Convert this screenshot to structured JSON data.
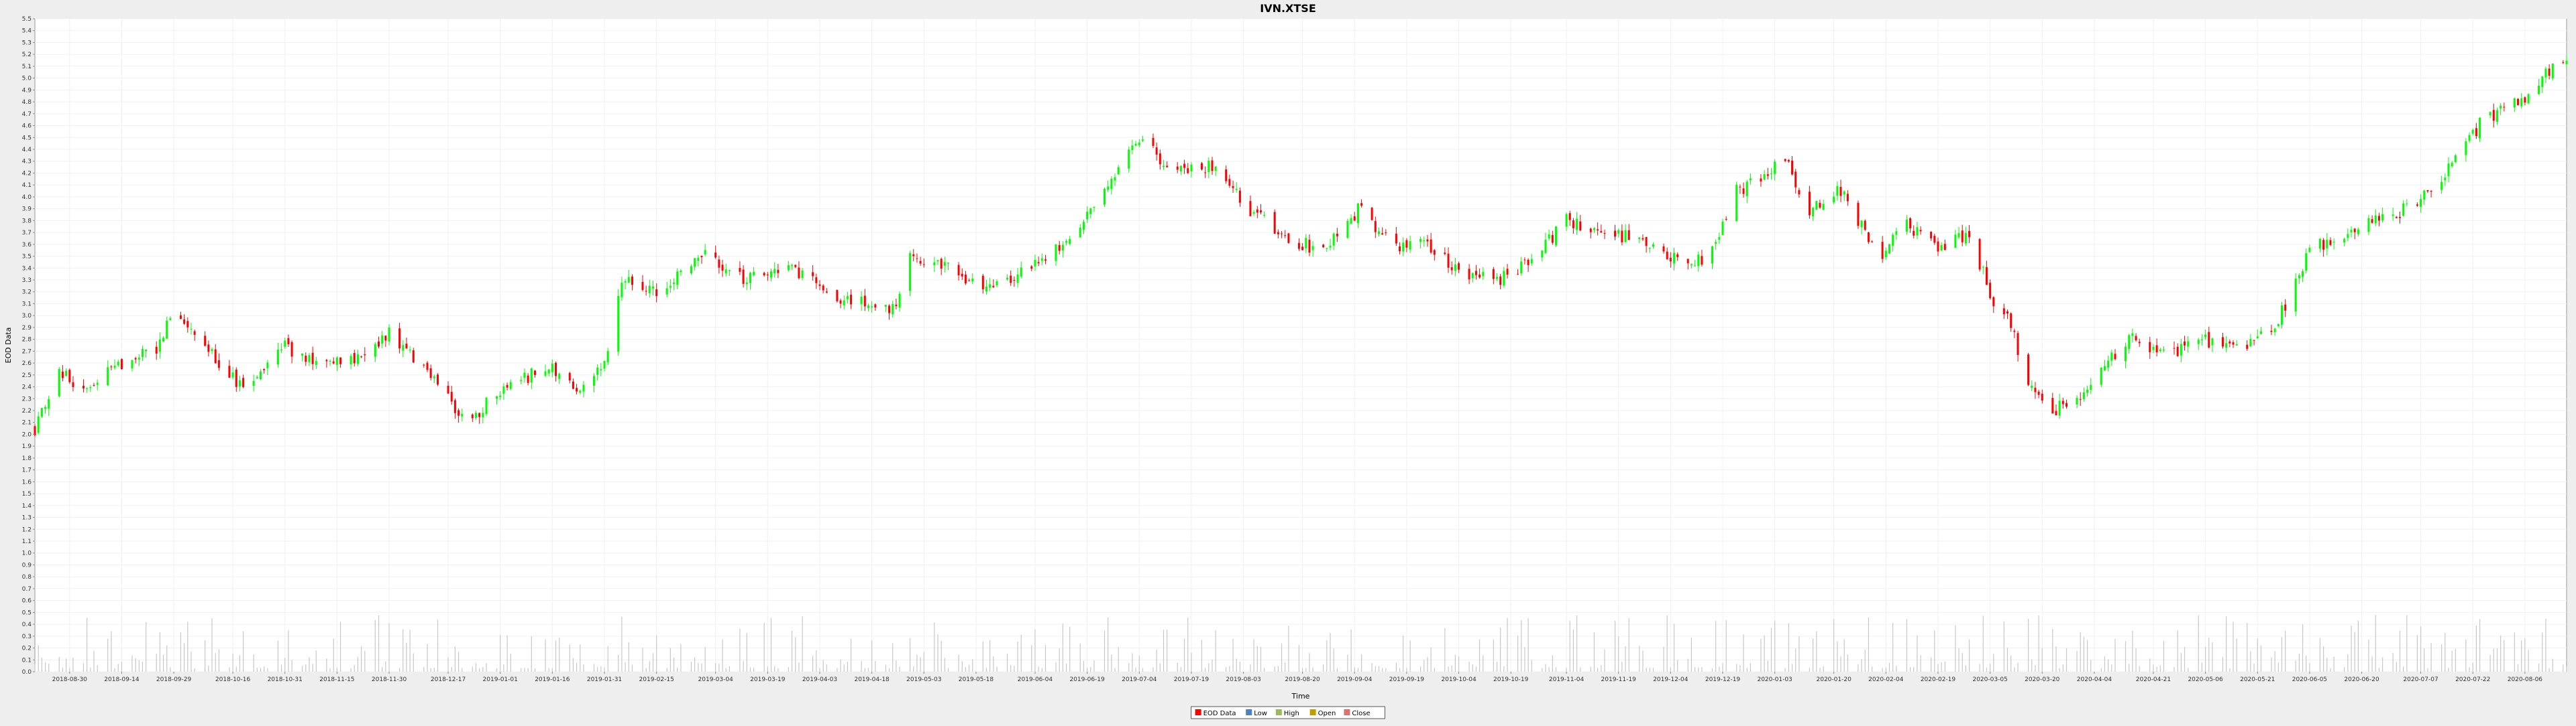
{
  "chart_data": {
    "type": "candlestick",
    "title": "IVN.XTSE",
    "xlabel": "Time",
    "ylabel": "EOD Data",
    "ylim": [
      0,
      5.5
    ],
    "y_ticks": [
      "0.0",
      "0.1",
      "0.2",
      "0.3",
      "0.4",
      "0.5",
      "0.6",
      "0.7",
      "0.8",
      "0.9",
      "1.0",
      "1.1",
      "1.2",
      "1.3",
      "1.4",
      "1.5",
      "1.6",
      "1.7",
      "1.8",
      "1.9",
      "2.0",
      "2.1",
      "2.2",
      "2.3",
      "2.4",
      "2.5",
      "2.6",
      "2.7",
      "2.8",
      "2.9",
      "3.0",
      "3.1",
      "3.2",
      "3.3",
      "3.4",
      "3.5",
      "3.6",
      "3.7",
      "3.8",
      "3.9",
      "4.0",
      "4.1",
      "4.2",
      "4.3",
      "4.4",
      "4.5",
      "4.6",
      "4.7",
      "4.8",
      "4.9",
      "5.0",
      "5.1",
      "5.2",
      "5.3",
      "5.4",
      "5.5"
    ],
    "x_range": [
      "2018-08-20",
      "2020-08-18"
    ],
    "x_ticks": [
      "2018-08-30",
      "2018-09-14",
      "2018-09-29",
      "2018-10-16",
      "2018-10-31",
      "2018-11-15",
      "2018-11-30",
      "2018-12-17",
      "2019-01-01",
      "2019-01-16",
      "2019-01-31",
      "2019-02-15",
      "2019-03-04",
      "2019-03-19",
      "2019-04-03",
      "2019-04-18",
      "2019-05-03",
      "2019-05-18",
      "2019-06-04",
      "2019-06-19",
      "2019-07-04",
      "2019-07-19",
      "2019-08-03",
      "2019-08-20",
      "2019-09-04",
      "2019-09-19",
      "2019-10-04",
      "2019-10-19",
      "2019-11-04",
      "2019-11-19",
      "2019-12-04",
      "2019-12-19",
      "2020-01-03",
      "2020-01-20",
      "2020-02-04",
      "2020-02-19",
      "2020-03-05",
      "2020-03-20",
      "2020-04-04",
      "2020-04-21",
      "2020-05-06",
      "2020-05-21",
      "2020-06-05",
      "2020-06-20",
      "2020-07-07",
      "2020-07-22",
      "2020-08-06"
    ],
    "price_anchors": [
      [
        "2018-08-20",
        2.05
      ],
      [
        "2018-08-27",
        2.55
      ],
      [
        "2018-09-03",
        2.35
      ],
      [
        "2018-09-14",
        2.6
      ],
      [
        "2018-09-25",
        2.75
      ],
      [
        "2018-09-29",
        3.05
      ],
      [
        "2018-10-08",
        2.75
      ],
      [
        "2018-10-20",
        2.35
      ],
      [
        "2018-10-31",
        2.75
      ],
      [
        "2018-11-10",
        2.55
      ],
      [
        "2018-11-20",
        2.65
      ],
      [
        "2018-11-30",
        2.85
      ],
      [
        "2018-12-10",
        2.55
      ],
      [
        "2018-12-22",
        2.1
      ],
      [
        "2019-01-05",
        2.45
      ],
      [
        "2019-01-16",
        2.55
      ],
      [
        "2019-01-26",
        2.35
      ],
      [
        "2019-02-01",
        2.7
      ],
      [
        "2019-02-05",
        3.3
      ],
      [
        "2019-02-15",
        3.2
      ],
      [
        "2019-03-01",
        3.55
      ],
      [
        "2019-03-12",
        3.3
      ],
      [
        "2019-03-25",
        3.4
      ],
      [
        "2019-04-08",
        3.15
      ],
      [
        "2019-04-25",
        3.05
      ],
      [
        "2019-04-28",
        3.5
      ],
      [
        "2019-05-08",
        3.45
      ],
      [
        "2019-05-18",
        3.25
      ],
      [
        "2019-05-28",
        3.3
      ],
      [
        "2019-06-10",
        3.55
      ],
      [
        "2019-06-20",
        3.9
      ],
      [
        "2019-06-28",
        4.25
      ],
      [
        "2019-07-04",
        4.45
      ],
      [
        "2019-07-14",
        4.25
      ],
      [
        "2019-07-26",
        4.25
      ],
      [
        "2019-08-06",
        3.85
      ],
      [
        "2019-08-16",
        3.65
      ],
      [
        "2019-08-25",
        3.55
      ],
      [
        "2019-09-01",
        3.7
      ],
      [
        "2019-09-05",
        3.9
      ],
      [
        "2019-09-15",
        3.6
      ],
      [
        "2019-09-25",
        3.6
      ],
      [
        "2019-10-04",
        3.35
      ],
      [
        "2019-10-15",
        3.3
      ],
      [
        "2019-10-25",
        3.45
      ],
      [
        "2019-11-04",
        3.8
      ],
      [
        "2019-11-14",
        3.7
      ],
      [
        "2019-11-24",
        3.65
      ],
      [
        "2019-12-04",
        3.5
      ],
      [
        "2019-12-14",
        3.45
      ],
      [
        "2019-12-23",
        4.05
      ],
      [
        "2019-12-30",
        4.15
      ],
      [
        "2020-01-05",
        4.35
      ],
      [
        "2020-01-13",
        3.9
      ],
      [
        "2020-01-22",
        4.05
      ],
      [
        "2020-02-02",
        3.5
      ],
      [
        "2020-02-10",
        3.75
      ],
      [
        "2020-02-20",
        3.55
      ],
      [
        "2020-02-28",
        3.7
      ],
      [
        "2020-03-06",
        3.1
      ],
      [
        "2020-03-10",
        3.0
      ],
      [
        "2020-03-16",
        2.45
      ],
      [
        "2020-03-23",
        2.2
      ],
      [
        "2020-04-01",
        2.35
      ],
      [
        "2020-04-15",
        2.85
      ],
      [
        "2020-04-25",
        2.65
      ],
      [
        "2020-05-06",
        2.8
      ],
      [
        "2020-05-16",
        2.7
      ],
      [
        "2020-05-26",
        2.9
      ],
      [
        "2020-06-05",
        3.55
      ],
      [
        "2020-06-15",
        3.7
      ],
      [
        "2020-06-25",
        3.85
      ],
      [
        "2020-07-05",
        3.9
      ],
      [
        "2020-07-15",
        4.25
      ],
      [
        "2020-07-25",
        4.65
      ],
      [
        "2020-08-06",
        4.85
      ],
      [
        "2020-08-18",
        5.2
      ]
    ],
    "colors": {
      "up": "#00ff00",
      "down": "#ff0000",
      "background": "#ffffff",
      "grid": "#f0f0f0",
      "volume": "#c8c8c8"
    },
    "grid": true,
    "legend": {
      "placement": "bottom",
      "items": [
        {
          "label": "EOD Data",
          "color": "#ff0000"
        },
        {
          "label": "Low",
          "color": "#4f81bd"
        },
        {
          "label": "High",
          "color": "#9bbb59"
        },
        {
          "label": "Open",
          "color": "#c0a000"
        },
        {
          "label": "Close",
          "color": "#e07070"
        }
      ]
    }
  }
}
